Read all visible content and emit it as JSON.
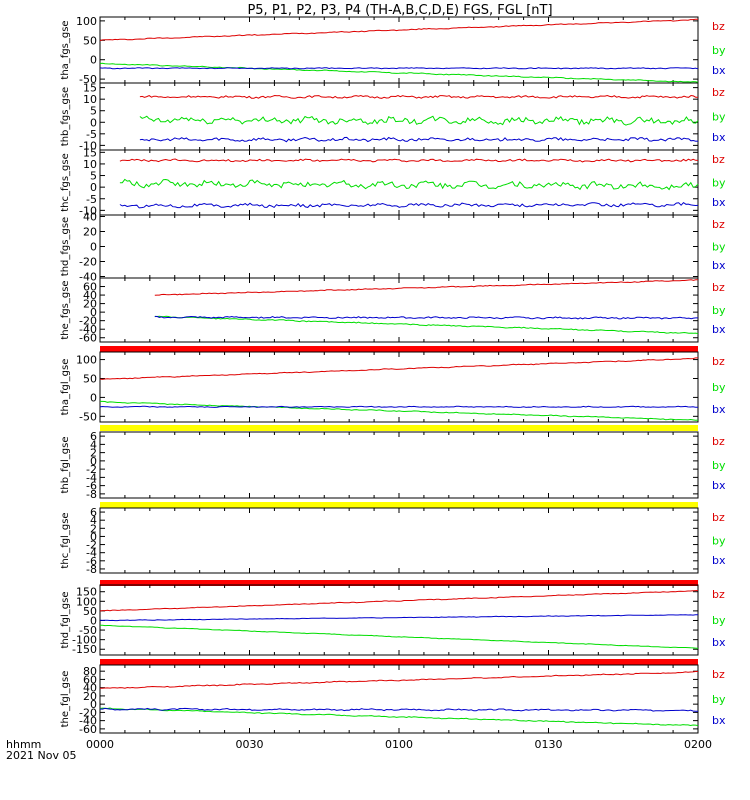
{
  "title": "P5, P1, P2, P3, P4 (TH-A,B,C,D,E) FGS, FGL [nT]",
  "footer": {
    "line1": "hhmm",
    "line2": "2021 Nov 05"
  },
  "colors": {
    "bx": "#0000cc",
    "by": "#00dd00",
    "bz": "#dd0000",
    "red_bar": "#ff0000",
    "yellow_bar": "#ffff00"
  },
  "chart_data": [
    {
      "type": "line",
      "ylabel": "tha_fgs_gse",
      "x": [
        "0000",
        "0030",
        "0100",
        "0130",
        "0200"
      ],
      "ylim": [
        -60,
        110
      ],
      "yticks": [
        "100",
        "50",
        "0",
        "-50"
      ],
      "status_bar": "none",
      "series": [
        {
          "name": "bz",
          "x_start_min": 0,
          "x_end_min": 120,
          "start": 50,
          "end": 103,
          "noise": 1.0
        },
        {
          "name": "by",
          "x_start_min": 0,
          "x_end_min": 120,
          "start": -10,
          "end": -58,
          "noise": 1.0
        },
        {
          "name": "bx",
          "x_start_min": 0,
          "x_end_min": 120,
          "start": -22,
          "end": -22,
          "noise": 1.0
        }
      ]
    },
    {
      "type": "line",
      "ylabel": "thb_fgs_gse",
      "x": [
        "0000",
        "0030",
        "0100",
        "0130",
        "0200"
      ],
      "ylim": [
        -12,
        17
      ],
      "yticks": [
        "15",
        "10",
        "5",
        "0",
        "-5",
        "-10"
      ],
      "status_bar": "none",
      "series": [
        {
          "name": "bz",
          "x_start_min": 8,
          "x_end_min": 120,
          "start": 11,
          "end": 11,
          "noise": 0.4
        },
        {
          "name": "by",
          "x_start_min": 8,
          "x_end_min": 120,
          "start": 1,
          "end": 0.5,
          "noise": 1.2
        },
        {
          "name": "bx",
          "x_start_min": 8,
          "x_end_min": 120,
          "start": -7.5,
          "end": -7.5,
          "noise": 0.6
        }
      ]
    },
    {
      "type": "line",
      "ylabel": "thc_fgs_gse",
      "x": [
        "0000",
        "0030",
        "0100",
        "0130",
        "0200"
      ],
      "ylim": [
        -12,
        16
      ],
      "yticks": [
        "15",
        "10",
        "5",
        "0",
        "-5",
        "-10"
      ],
      "status_bar": "none",
      "series": [
        {
          "name": "bz",
          "x_start_min": 4,
          "x_end_min": 120,
          "start": 11.5,
          "end": 11.5,
          "noise": 0.4
        },
        {
          "name": "by",
          "x_start_min": 4,
          "x_end_min": 120,
          "start": 1.5,
          "end": 0.5,
          "noise": 1.2
        },
        {
          "name": "bx",
          "x_start_min": 4,
          "x_end_min": 120,
          "start": -8,
          "end": -7.5,
          "noise": 0.6
        }
      ]
    },
    {
      "type": "line",
      "ylabel": "thd_fgs_gse",
      "x": [
        "0000",
        "0030",
        "0100",
        "0130",
        "0200"
      ],
      "ylim": [
        -42,
        42
      ],
      "yticks": [
        "40",
        "20",
        "0",
        "-20",
        "-40"
      ],
      "status_bar": "none",
      "series": []
    },
    {
      "type": "line",
      "ylabel": "the_fgs_gse",
      "x": [
        "0000",
        "0030",
        "0100",
        "0130",
        "0200"
      ],
      "ylim": [
        -70,
        80
      ],
      "yticks": [
        "60",
        "40",
        "20",
        "0",
        "-20",
        "-40",
        "-60"
      ],
      "status_bar": "red",
      "series": [
        {
          "name": "bz",
          "x_start_min": 11,
          "x_end_min": 120,
          "start": 40,
          "end": 75,
          "noise": 0.8
        },
        {
          "name": "by",
          "x_start_min": 11,
          "x_end_min": 120,
          "start": -10,
          "end": -50,
          "noise": 1.0
        },
        {
          "name": "bx",
          "x_start_min": 11,
          "x_end_min": 120,
          "start": -12,
          "end": -14,
          "noise": 1.5
        }
      ]
    },
    {
      "type": "line",
      "ylabel": "tha_fgl_gse",
      "x": [
        "0000",
        "0030",
        "0100",
        "0130",
        "0200"
      ],
      "ylim": [
        -65,
        120
      ],
      "yticks": [
        "100",
        "50",
        "0",
        "-50"
      ],
      "status_bar": "yellow",
      "series": [
        {
          "name": "bz",
          "x_start_min": 0,
          "x_end_min": 120,
          "start": 48,
          "end": 103,
          "noise": 1.0
        },
        {
          "name": "by",
          "x_start_min": 0,
          "x_end_min": 120,
          "start": -12,
          "end": -60,
          "noise": 1.0
        },
        {
          "name": "bx",
          "x_start_min": 0,
          "x_end_min": 120,
          "start": -25,
          "end": -25,
          "noise": 1.0
        }
      ]
    },
    {
      "type": "line",
      "ylabel": "thb_fgl_gse",
      "x": [
        "0000",
        "0030",
        "0100",
        "0130",
        "0200"
      ],
      "ylim": [
        -9,
        7
      ],
      "yticks": [
        "6",
        "4",
        "2",
        "0",
        "-2",
        "-4",
        "-6",
        "-8"
      ],
      "status_bar": "yellow",
      "series": []
    },
    {
      "type": "line",
      "ylabel": "thc_fgl_gse",
      "x": [
        "0000",
        "0030",
        "0100",
        "0130",
        "0200"
      ],
      "ylim": [
        -9,
        7
      ],
      "yticks": [
        "6",
        "4",
        "2",
        "0",
        "-2",
        "-4",
        "-6",
        "-8"
      ],
      "status_bar": "red",
      "series": []
    },
    {
      "type": "line",
      "ylabel": "thd_fgl_gse",
      "x": [
        "0000",
        "0030",
        "0100",
        "0130",
        "0200"
      ],
      "ylim": [
        -180,
        185
      ],
      "yticks": [
        "150",
        "100",
        "50",
        "0",
        "-50",
        "-100",
        "-150"
      ],
      "status_bar": "red",
      "series": [
        {
          "name": "bz",
          "x_start_min": 0,
          "x_end_min": 120,
          "start": 50,
          "end": 155,
          "noise": 1.5
        },
        {
          "name": "by",
          "x_start_min": 0,
          "x_end_min": 120,
          "start": -25,
          "end": -145,
          "noise": 1.2
        },
        {
          "name": "bx",
          "x_start_min": 0,
          "x_end_min": 120,
          "start": 0,
          "end": 30,
          "noise": 1.2
        }
      ]
    },
    {
      "type": "line",
      "ylabel": "the_fgl_gse",
      "x": [
        "0000",
        "0030",
        "0100",
        "0130",
        "0200"
      ],
      "ylim": [
        -70,
        95
      ],
      "yticks": [
        "80",
        "60",
        "40",
        "20",
        "0",
        "-20",
        "-40",
        "-60"
      ],
      "status_bar": "none",
      "series": [
        {
          "name": "bz",
          "x_start_min": 0,
          "x_end_min": 120,
          "start": 38,
          "end": 78,
          "noise": 1.0
        },
        {
          "name": "by",
          "x_start_min": 0,
          "x_end_min": 120,
          "start": -10,
          "end": -52,
          "noise": 1.0
        },
        {
          "name": "bx",
          "x_start_min": 0,
          "x_end_min": 120,
          "start": -12,
          "end": -15,
          "noise": 1.5
        }
      ]
    }
  ]
}
